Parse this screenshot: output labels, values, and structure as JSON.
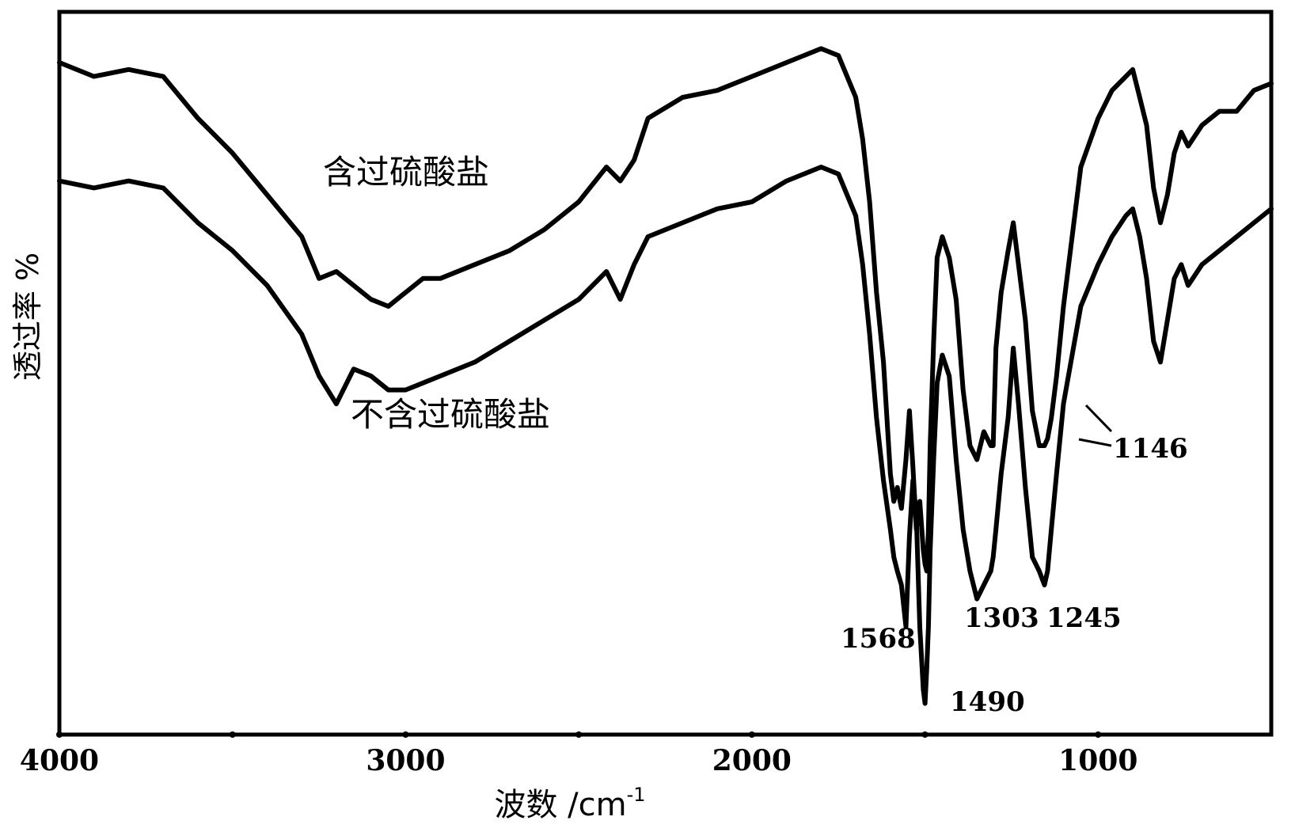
{
  "chart_data": {
    "type": "line",
    "title": "",
    "xlabel": "波数 /cm",
    "xlabel_superscript": "-1",
    "ylabel": "透过率 %",
    "xlim": [
      4000,
      500
    ],
    "x_reversed": true,
    "ylim": [
      0,
      100
    ],
    "y_tick_labels_shown": false,
    "grid": false,
    "legend": "none",
    "x_ticks": [
      4000,
      3500,
      3000,
      2500,
      2000,
      1500,
      1000
    ],
    "x_tick_labels": [
      "4000",
      "",
      "3000",
      "",
      "2000",
      "",
      "1000"
    ],
    "line_color": "#000000",
    "series": [
      {
        "name": "含过硫酸盐",
        "x": [
          4000,
          3900,
          3800,
          3700,
          3600,
          3500,
          3400,
          3300,
          3250,
          3200,
          3150,
          3100,
          3050,
          3000,
          2950,
          2900,
          2800,
          2700,
          2600,
          2500,
          2420,
          2380,
          2340,
          2300,
          2200,
          2100,
          2000,
          1900,
          1800,
          1750,
          1700,
          1680,
          1660,
          1640,
          1620,
          1600,
          1590,
          1580,
          1568,
          1555,
          1545,
          1535,
          1525,
          1515,
          1505,
          1500,
          1495,
          1490,
          1485,
          1475,
          1465,
          1450,
          1430,
          1410,
          1390,
          1370,
          1350,
          1330,
          1310,
          1303,
          1295,
          1280,
          1260,
          1245,
          1230,
          1210,
          1190,
          1170,
          1155,
          1146,
          1135,
          1120,
          1100,
          1050,
          1000,
          960,
          920,
          900,
          880,
          860,
          840,
          820,
          800,
          780,
          760,
          740,
          700,
          650,
          600,
          550,
          500
        ],
        "y": [
          95,
          93,
          94,
          93,
          87,
          82,
          76,
          70,
          64,
          65,
          63,
          61,
          60,
          62,
          64,
          64,
          66,
          68,
          71,
          75,
          80,
          78,
          81,
          87,
          90,
          91,
          93,
          95,
          97,
          96,
          90,
          84,
          75,
          62,
          52,
          36,
          32,
          34,
          31,
          38,
          45,
          37,
          28,
          32,
          25,
          23,
          22,
          28,
          40,
          55,
          67,
          70,
          67,
          61,
          48,
          40,
          38,
          42,
          40,
          40,
          54,
          62,
          68,
          72,
          66,
          58,
          45,
          40,
          40,
          41,
          44,
          50,
          60,
          80,
          87,
          91,
          93,
          94,
          90,
          86,
          77,
          72,
          76,
          82,
          85,
          83,
          86,
          88,
          88,
          91,
          92
        ]
      },
      {
        "name": "不含过硫酸盐",
        "x": [
          4000,
          3900,
          3800,
          3700,
          3600,
          3500,
          3400,
          3300,
          3250,
          3200,
          3150,
          3100,
          3050,
          3000,
          2950,
          2900,
          2800,
          2700,
          2600,
          2500,
          2420,
          2380,
          2340,
          2300,
          2200,
          2100,
          2000,
          1900,
          1800,
          1750,
          1700,
          1680,
          1660,
          1640,
          1620,
          1600,
          1590,
          1580,
          1568,
          1555,
          1545,
          1535,
          1525,
          1515,
          1505,
          1500,
          1495,
          1490,
          1485,
          1475,
          1465,
          1450,
          1430,
          1410,
          1390,
          1370,
          1350,
          1330,
          1310,
          1303,
          1295,
          1280,
          1260,
          1245,
          1230,
          1210,
          1190,
          1170,
          1155,
          1146,
          1135,
          1120,
          1100,
          1050,
          1000,
          960,
          920,
          900,
          880,
          860,
          840,
          820,
          800,
          780,
          760,
          740,
          700,
          650,
          600,
          550,
          500
        ],
        "y": [
          78,
          77,
          78,
          77,
          72,
          68,
          63,
          56,
          50,
          46,
          51,
          50,
          48,
          48,
          49,
          50,
          52,
          55,
          58,
          61,
          65,
          61,
          66,
          70,
          72,
          74,
          75,
          78,
          80,
          79,
          73,
          66,
          56,
          44,
          35,
          28,
          24,
          22,
          20,
          14,
          27,
          35,
          30,
          14,
          5,
          3,
          8,
          14,
          25,
          38,
          49,
          53,
          50,
          38,
          28,
          22,
          18,
          20,
          22,
          24,
          28,
          36,
          44,
          54,
          46,
          34,
          24,
          22,
          20,
          22,
          28,
          36,
          46,
          60,
          66,
          70,
          73,
          74,
          70,
          64,
          55,
          52,
          58,
          64,
          66,
          63,
          66,
          68,
          70,
          72,
          74
        ]
      }
    ],
    "annotations": [
      {
        "label": "1568",
        "x": 1568
      },
      {
        "label": "1490",
        "x": 1490
      },
      {
        "label": "1303",
        "x": 1303
      },
      {
        "label": "1245",
        "x": 1245
      },
      {
        "label": "1146",
        "x": 1146
      }
    ]
  }
}
